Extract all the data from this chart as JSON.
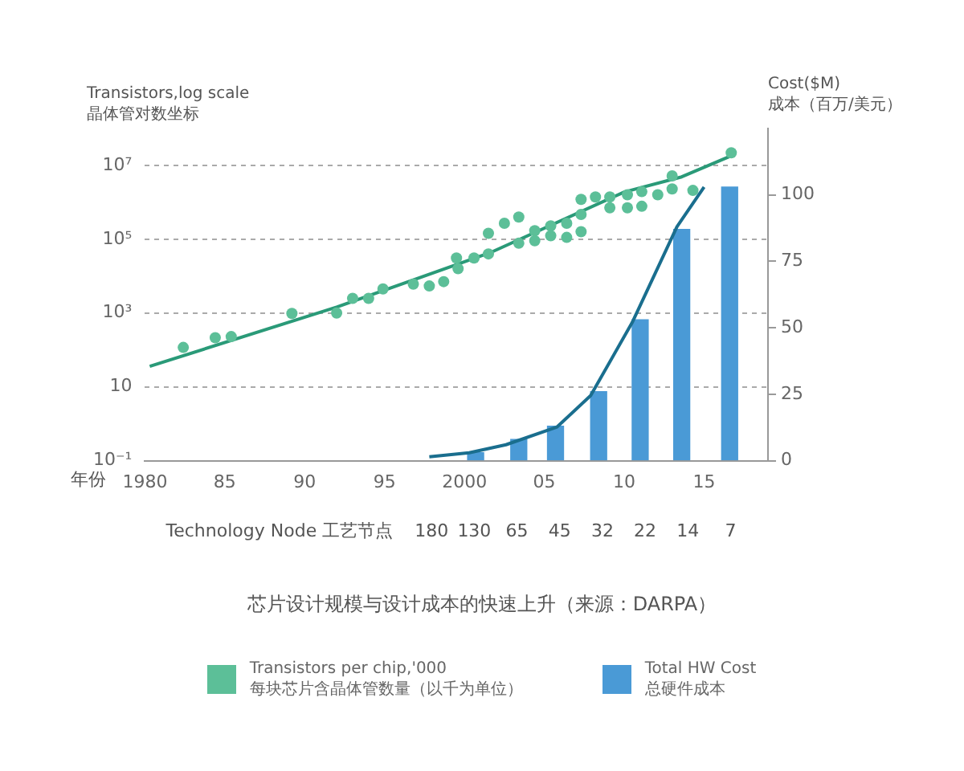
{
  "chart_data": {
    "type": "scatter",
    "title": "芯片设计规模与设计成本的快速上升（来源：DARPA）",
    "ylabel": "Transistors,log scale\n晶体管对数坐标",
    "y2label": "Cost($M)\n成本（百万/美元）",
    "xlabel": "年份",
    "annotations": [
      "Technology Node 工艺节点",
      "180",
      "130",
      "65",
      "45",
      "32",
      "22",
      "14",
      "7"
    ],
    "xlim": [
      1980,
      2019
    ],
    "xticks": [
      {
        "value": 1980,
        "label": "1980"
      },
      {
        "value": 1985,
        "label": "85"
      },
      {
        "value": 1990,
        "label": "90"
      },
      {
        "value": 1995,
        "label": "95"
      },
      {
        "value": 2000,
        "label": "2000"
      },
      {
        "value": 2005,
        "label": "05"
      },
      {
        "value": 2010,
        "label": "10"
      },
      {
        "value": 2015,
        "label": "15"
      }
    ],
    "log": "y",
    "ylim": [
      0.1,
      100000000
    ],
    "yticks": [
      {
        "value": 0.1,
        "label": "10⁻¹"
      },
      10,
      {
        "value": 1000,
        "label": "10³"
      },
      {
        "value": 100000,
        "label": "10⁵"
      },
      {
        "value": 10000000,
        "label": "10⁷"
      }
    ],
    "y2lim": [
      0,
      125
    ],
    "y2ticks": [
      0,
      25,
      50,
      75,
      100
    ],
    "grid": "y",
    "legend": "bottom",
    "series": [
      {
        "marker": "circle",
        "name": "Transistors per chip,'000\n每块芯片含晶体管数量（以千为单位）",
        "color": "#5cbf98",
        "x": [
          1982.4,
          1984.4,
          1985.4,
          1989.2,
          1992,
          1993,
          1994,
          1994.9,
          1996.8,
          1997.8,
          1998.7,
          1999.5,
          1999.6,
          2000.6,
          2001.5,
          2001.5,
          2002.5,
          2003.4,
          2003.4,
          2004.4,
          2004.4,
          2005.4,
          2005.4,
          2006.4,
          2006.4,
          2007.3,
          2007.3,
          2007.3,
          2008.2,
          2009.1,
          2009.1,
          2010.2,
          2010.2,
          2011.1,
          2011.1,
          2012.1,
          2013,
          2013,
          2014.3,
          2016.7
        ],
        "values": [
          117,
          215,
          230,
          980,
          1000,
          2500,
          2500,
          4500,
          6100,
          5400,
          7100,
          31000,
          16000,
          31000,
          40000,
          145000,
          270000,
          400000,
          78000,
          170000,
          91000,
          230000,
          124000,
          270000,
          112000,
          1200000,
          470000,
          160000,
          1400000,
          1400000,
          710000,
          1600000,
          710000,
          1950000,
          780000,
          1600000,
          5200000,
          2300000,
          2100000,
          22000000
        ]
      },
      {
        "type": "line",
        "marker": "none",
        "color": "#2a9a78",
        "x": [
          1980.3,
          1992,
          2001.6,
          2010,
          2013.6,
          2016.8
        ],
        "values": [
          36,
          1450,
          43000,
          1900000,
          4900000,
          19000000
        ]
      },
      {
        "type": "bar",
        "name": "Total HW Cost\n总硬件成本",
        "color": "#4a9ad6",
        "axis": "y2",
        "x": [
          2000.7,
          2003.4,
          2005.7,
          2008.4,
          2011,
          2013.6,
          2016.6
        ],
        "values": [
          3,
          8,
          13,
          26,
          53,
          87,
          103
        ]
      },
      {
        "type": "line",
        "marker": "none",
        "color": "#1a6e8e",
        "axis": "y2",
        "x": [
          1997.8,
          2000.3,
          2002.6,
          2005.8,
          2007.9,
          2010.5,
          2013.3,
          2015
        ],
        "values": [
          1.5,
          3,
          6,
          12.7,
          24.5,
          52,
          88,
          103
        ]
      }
    ]
  }
}
